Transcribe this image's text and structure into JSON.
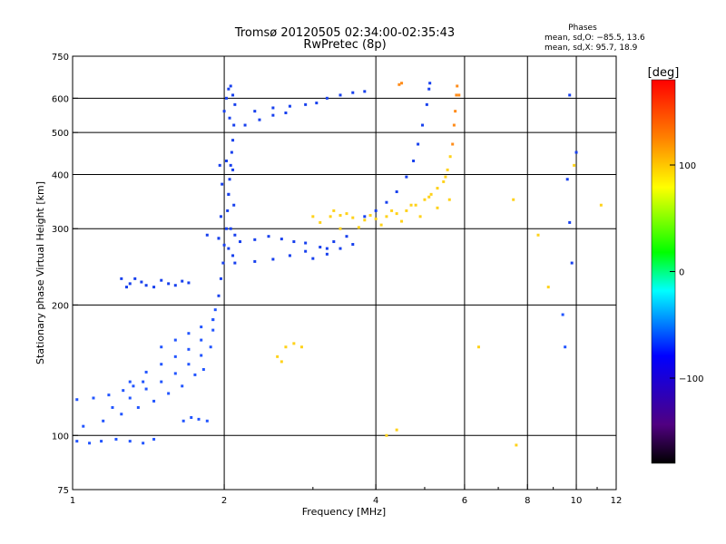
{
  "chart_data": {
    "type": "scatter",
    "title": "Tromsø 20120505 02:34:00-02:35:43",
    "subtitle": "RwPretec (8p)",
    "xlabel": "Frequency [MHz]",
    "ylabel": "Stationary phase Virtual Height [km]",
    "x_scale": "log",
    "y_scale": "log",
    "xlim": [
      1,
      12
    ],
    "ylim": [
      75,
      750
    ],
    "x_ticks": [
      1,
      2,
      4,
      6,
      8,
      10,
      12
    ],
    "y_ticks": [
      75,
      100,
      200,
      300,
      400,
      500,
      600,
      750
    ],
    "x_grid": [
      2,
      4,
      6,
      8,
      10
    ],
    "y_grid": [
      100,
      200,
      300,
      400,
      500,
      600
    ],
    "stats": {
      "title": "Phases",
      "line1": "mean, sd,O: −85.5, 13.6",
      "line2": "mean, sd,X:  95.7, 18.9"
    },
    "colorbar": {
      "label": "[deg]",
      "ticks": [
        "100",
        "0",
        "−100"
      ],
      "tick_values": [
        100,
        0,
        -100
      ],
      "range": [
        -180,
        180
      ],
      "colors": [
        "#000000",
        "#500080",
        "#0000ff",
        "#00ffff",
        "#00ff00",
        "#ffff00",
        "#ff8000",
        "#ff0000"
      ]
    },
    "series": [
      {
        "values": [
          [
            1.02,
            97
          ],
          [
            1.08,
            96
          ],
          [
            1.14,
            97
          ],
          [
            1.22,
            98
          ],
          [
            1.3,
            97
          ],
          [
            1.38,
            96
          ],
          [
            1.45,
            98
          ],
          [
            1.02,
            121
          ],
          [
            1.1,
            122
          ],
          [
            1.18,
            124
          ],
          [
            1.26,
            127
          ],
          [
            1.32,
            130
          ],
          [
            1.38,
            133
          ],
          [
            1.05,
            105
          ],
          [
            1.15,
            108
          ],
          [
            1.25,
            112
          ],
          [
            1.35,
            116
          ],
          [
            1.45,
            120
          ],
          [
            1.55,
            125
          ],
          [
            1.65,
            130
          ],
          [
            1.75,
            138
          ],
          [
            1.82,
            142
          ],
          [
            1.2,
            116
          ],
          [
            1.3,
            122
          ],
          [
            1.4,
            128
          ],
          [
            1.5,
            133
          ],
          [
            1.6,
            139
          ],
          [
            1.7,
            146
          ],
          [
            1.8,
            153
          ],
          [
            1.88,
            160
          ],
          [
            1.3,
            133
          ],
          [
            1.4,
            140
          ],
          [
            1.5,
            146
          ],
          [
            1.6,
            152
          ],
          [
            1.7,
            158
          ],
          [
            1.8,
            166
          ],
          [
            1.9,
            175
          ],
          [
            1.5,
            160
          ],
          [
            1.6,
            166
          ],
          [
            1.7,
            172
          ],
          [
            1.8,
            178
          ],
          [
            1.9,
            185
          ],
          [
            1.66,
            108
          ],
          [
            1.72,
            110
          ],
          [
            1.78,
            109
          ],
          [
            1.85,
            108
          ],
          [
            1.25,
            230
          ],
          [
            1.28,
            220
          ],
          [
            1.3,
            224
          ],
          [
            1.33,
            230
          ],
          [
            1.37,
            226
          ],
          [
            1.4,
            222
          ],
          [
            1.45,
            220
          ],
          [
            1.5,
            228
          ],
          [
            1.55,
            224
          ],
          [
            1.6,
            222
          ],
          [
            1.65,
            227
          ],
          [
            1.7,
            225
          ],
          [
            1.9,
            185
          ],
          [
            1.92,
            195
          ],
          [
            1.95,
            210
          ],
          [
            1.97,
            230
          ],
          [
            1.99,
            250
          ],
          [
            2.0,
            275
          ],
          [
            2.02,
            300
          ],
          [
            2.03,
            330
          ],
          [
            2.04,
            360
          ],
          [
            2.05,
            390
          ],
          [
            2.06,
            420
          ],
          [
            2.07,
            450
          ],
          [
            2.08,
            480
          ],
          [
            1.96,
            420
          ],
          [
            2.02,
            430
          ],
          [
            2.08,
            410
          ],
          [
            1.98,
            380
          ],
          [
            2.04,
            360
          ],
          [
            2.09,
            340
          ],
          [
            1.97,
            320
          ],
          [
            2.06,
            300
          ],
          [
            2.1,
            290
          ],
          [
            1.95,
            285
          ],
          [
            2.04,
            270
          ],
          [
            2.08,
            260
          ],
          [
            2.0,
            560
          ],
          [
            2.02,
            600
          ],
          [
            2.04,
            630
          ],
          [
            2.06,
            640
          ],
          [
            2.08,
            610
          ],
          [
            2.1,
            580
          ],
          [
            2.05,
            540
          ],
          [
            2.09,
            520
          ],
          [
            2.1,
            250
          ],
          [
            2.3,
            252
          ],
          [
            2.5,
            255
          ],
          [
            2.7,
            260
          ],
          [
            2.9,
            266
          ],
          [
            3.1,
            272
          ],
          [
            3.3,
            280
          ],
          [
            3.5,
            288
          ],
          [
            1.85,
            290
          ],
          [
            1.95,
            285
          ],
          [
            2.15,
            280
          ],
          [
            2.3,
            283
          ],
          [
            2.45,
            288
          ],
          [
            2.6,
            284
          ],
          [
            2.75,
            280
          ],
          [
            2.9,
            278
          ],
          [
            2.3,
            560
          ],
          [
            2.5,
            570
          ],
          [
            2.7,
            575
          ],
          [
            2.9,
            580
          ],
          [
            3.05,
            585
          ],
          [
            3.2,
            600
          ],
          [
            3.4,
            610
          ],
          [
            3.6,
            618
          ],
          [
            3.8,
            622
          ],
          [
            2.2,
            520
          ],
          [
            2.35,
            535
          ],
          [
            2.5,
            548
          ],
          [
            2.65,
            555
          ],
          [
            3.8,
            320
          ],
          [
            4.0,
            330
          ],
          [
            4.2,
            345
          ],
          [
            4.4,
            365
          ],
          [
            4.6,
            395
          ],
          [
            4.75,
            430
          ],
          [
            4.85,
            470
          ],
          [
            4.95,
            520
          ],
          [
            5.05,
            580
          ],
          [
            5.1,
            630
          ],
          [
            5.12,
            650
          ],
          [
            3.0,
            256
          ],
          [
            3.2,
            262
          ],
          [
            3.4,
            270
          ],
          [
            3.6,
            276
          ],
          [
            3.2,
            270
          ],
          [
            9.7,
            610
          ],
          [
            10.0,
            450
          ],
          [
            9.6,
            390
          ],
          [
            9.7,
            310
          ],
          [
            9.8,
            250
          ],
          [
            9.4,
            190
          ],
          [
            9.5,
            160
          ]
        ]
      },
      {
        "values": [
          [
            3.1,
            310
          ],
          [
            3.25,
            320
          ],
          [
            3.4,
            322
          ],
          [
            3.6,
            318
          ],
          [
            3.8,
            314
          ],
          [
            4.0,
            316
          ],
          [
            4.2,
            320
          ],
          [
            4.4,
            325
          ],
          [
            4.6,
            330
          ],
          [
            4.8,
            340
          ],
          [
            5.0,
            350
          ],
          [
            5.15,
            360
          ],
          [
            5.3,
            372
          ],
          [
            5.45,
            385
          ],
          [
            5.55,
            410
          ],
          [
            5.62,
            440
          ],
          [
            5.68,
            470
          ],
          [
            5.72,
            520
          ],
          [
            5.75,
            560
          ],
          [
            5.78,
            610
          ],
          [
            3.0,
            320
          ],
          [
            3.3,
            330
          ],
          [
            3.5,
            325
          ],
          [
            3.9,
            322
          ],
          [
            4.3,
            330
          ],
          [
            4.7,
            340
          ],
          [
            5.1,
            355
          ],
          [
            5.5,
            395
          ],
          [
            3.4,
            300
          ],
          [
            3.7,
            302
          ],
          [
            4.1,
            306
          ],
          [
            4.5,
            312
          ],
          [
            4.9,
            320
          ],
          [
            5.3,
            335
          ],
          [
            5.6,
            350
          ],
          [
            2.65,
            160
          ],
          [
            2.75,
            163
          ],
          [
            2.55,
            152
          ],
          [
            2.6,
            148
          ],
          [
            2.85,
            160
          ],
          [
            4.45,
            645
          ],
          [
            4.5,
            650
          ],
          [
            5.8,
            640
          ],
          [
            5.85,
            610
          ],
          [
            4.2,
            100
          ],
          [
            4.4,
            103
          ],
          [
            6.4,
            160
          ],
          [
            7.6,
            95
          ],
          [
            8.4,
            290
          ],
          [
            8.8,
            220
          ],
          [
            7.5,
            350
          ],
          [
            9.9,
            420
          ],
          [
            11.2,
            340
          ]
        ]
      }
    ]
  }
}
